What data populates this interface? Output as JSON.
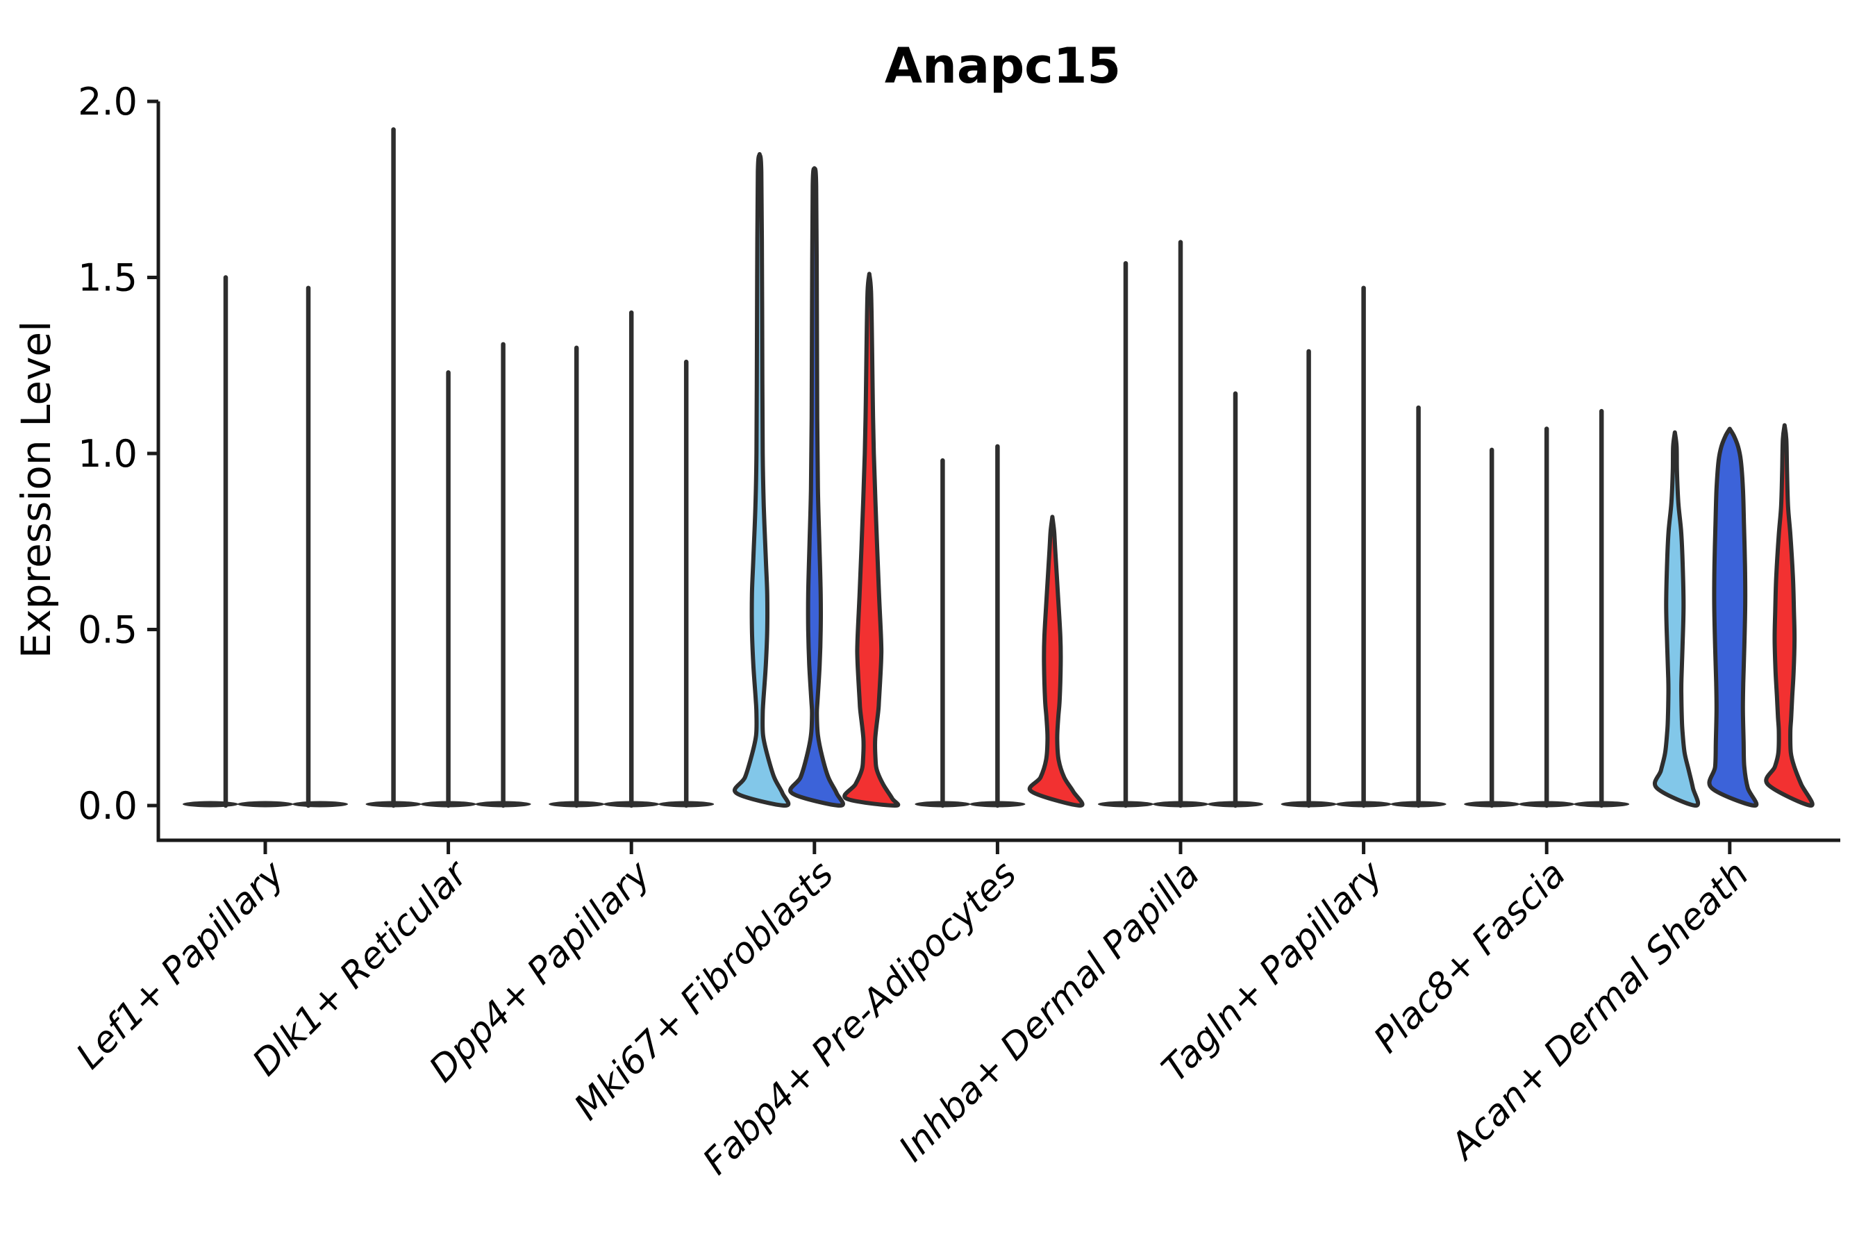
{
  "figure": {
    "title": "Anapc15",
    "ylabel": "Expression Level",
    "background_color": "#ffffff"
  },
  "palette": {
    "hue_colors": [
      "#82C7E9",
      "#3C63D9",
      "#F23131"
    ],
    "outline_color": "#2E2E2E",
    "flat_disc_color": "#2F2F2F",
    "axis_color": "#1a1a1a"
  },
  "chart_data": {
    "type": "violin",
    "title": "Anapc15",
    "xlabel": "",
    "ylabel": "Expression Level",
    "ylim": [
      -0.1,
      2.0
    ],
    "yticks": [
      0.0,
      0.5,
      1.0,
      1.5,
      2.0
    ],
    "ytick_labels": [
      "0.0",
      "0.5",
      "1.0",
      "1.5",
      "2.0"
    ],
    "grid": false,
    "legend": "none",
    "hue_colors": [
      "#82C7E9",
      "#3C63D9",
      "#F23131"
    ],
    "categories": [
      "Lef1+ Papillary",
      "Dlk1+ Reticular",
      "Dpp4+ Papillary",
      "Mki67+ Fibroblasts",
      "Fabp4+ Pre-Adipocytes",
      "Inhba+ Dermal Papilla",
      "Tagln+ Papillary",
      "Plac8+ Fascia",
      "Acan+ Dermal Sheath"
    ],
    "groups": [
      {
        "category": "Lef1+ Papillary",
        "violins": [
          {
            "hue": 0,
            "style": "spike",
            "max": 1.5,
            "x_shift": 22
          },
          {
            "hue": 1,
            "style": "flat",
            "max": 0.0
          },
          {
            "hue": 2,
            "style": "spike",
            "max": 1.47,
            "x_shift": -17
          }
        ]
      },
      {
        "category": "Dlk1+ Reticular",
        "violins": [
          {
            "hue": 0,
            "style": "spike",
            "max": 1.92
          },
          {
            "hue": 1,
            "style": "spike",
            "max": 1.23
          },
          {
            "hue": 2,
            "style": "spike",
            "max": 1.31
          }
        ]
      },
      {
        "category": "Dpp4+ Papillary",
        "violins": [
          {
            "hue": 0,
            "style": "spike",
            "max": 1.3
          },
          {
            "hue": 1,
            "style": "spike",
            "max": 1.4
          },
          {
            "hue": 2,
            "style": "spike",
            "max": 1.26
          }
        ]
      },
      {
        "category": "Mki67+ Fibroblasts",
        "violins": [
          {
            "hue": 0,
            "style": "filled",
            "max": 1.85,
            "profile": [
              [
                1.85,
                0
              ],
              [
                1.8,
                2.5
              ],
              [
                1.5,
                3.5
              ],
              [
                1.2,
                4
              ],
              [
                1.0,
                4.5
              ],
              [
                0.85,
                6
              ],
              [
                0.7,
                9
              ],
              [
                0.6,
                11
              ],
              [
                0.5,
                11
              ],
              [
                0.4,
                9
              ],
              [
                0.3,
                5.5
              ],
              [
                0.26,
                4.5
              ],
              [
                0.2,
                5
              ],
              [
                0.145,
                11
              ],
              [
                0.08,
                21
              ],
              [
                0.035,
                33
              ],
              [
                0,
                37
              ]
            ]
          },
          {
            "hue": 1,
            "style": "filled",
            "max": 1.81,
            "profile": [
              [
                1.81,
                0
              ],
              [
                1.76,
                2.5
              ],
              [
                1.4,
                3.5
              ],
              [
                1.1,
                4
              ],
              [
                0.9,
                5
              ],
              [
                0.75,
                7
              ],
              [
                0.6,
                9
              ],
              [
                0.5,
                9
              ],
              [
                0.4,
                7.5
              ],
              [
                0.3,
                4.5
              ],
              [
                0.26,
                3.5
              ],
              [
                0.2,
                5
              ],
              [
                0.14,
                11
              ],
              [
                0.08,
                20
              ],
              [
                0.035,
                32
              ],
              [
                0,
                37
              ]
            ]
          },
          {
            "hue": 2,
            "style": "filled",
            "max": 1.51,
            "profile": [
              [
                1.51,
                0
              ],
              [
                1.46,
                2.5
              ],
              [
                1.3,
                4
              ],
              [
                1.15,
                5
              ],
              [
                1.0,
                6.5
              ],
              [
                0.8,
                10
              ],
              [
                0.6,
                14
              ],
              [
                0.47,
                17
              ],
              [
                0.41,
                17
              ],
              [
                0.3,
                14
              ],
              [
                0.27,
                13
              ],
              [
                0.19,
                8.5
              ],
              [
                0.13,
                9
              ],
              [
                0.1,
                11
              ],
              [
                0.06,
                20
              ],
              [
                0.02,
                33
              ],
              [
                0,
                37
              ]
            ]
          }
        ]
      },
      {
        "category": "Fabp4+ Pre-Adipocytes",
        "violins": [
          {
            "hue": 0,
            "style": "spike",
            "max": 0.98
          },
          {
            "hue": 1,
            "style": "spike",
            "max": 1.02
          },
          {
            "hue": 2,
            "style": "filled",
            "max": 0.82,
            "profile": [
              [
                0.82,
                0
              ],
              [
                0.78,
                2.5
              ],
              [
                0.73,
                4
              ],
              [
                0.6,
                8
              ],
              [
                0.48,
                11.5
              ],
              [
                0.4,
                12
              ],
              [
                0.3,
                10.5
              ],
              [
                0.25,
                8.5
              ],
              [
                0.19,
                7
              ],
              [
                0.13,
                9
              ],
              [
                0.08,
                17
              ],
              [
                0.04,
                30
              ],
              [
                0,
                40
              ]
            ]
          }
        ]
      },
      {
        "category": "Inhba+ Dermal Papilla",
        "violins": [
          {
            "hue": 0,
            "style": "spike",
            "max": 1.54
          },
          {
            "hue": 1,
            "style": "spike",
            "max": 1.6
          },
          {
            "hue": 2,
            "style": "spike",
            "max": 1.17
          }
        ]
      },
      {
        "category": "Tagln+ Papillary",
        "violins": [
          {
            "hue": 0,
            "style": "spike",
            "max": 1.29
          },
          {
            "hue": 1,
            "style": "spike",
            "max": 1.47
          },
          {
            "hue": 2,
            "style": "spike",
            "max": 1.13
          }
        ]
      },
      {
        "category": "Plac8+ Fascia",
        "violins": [
          {
            "hue": 0,
            "style": "spike",
            "max": 1.01
          },
          {
            "hue": 1,
            "style": "spike",
            "max": 1.07
          },
          {
            "hue": 2,
            "style": "spike",
            "max": 1.12
          }
        ]
      },
      {
        "category": "Acan+ Dermal Sheath",
        "violins": [
          {
            "hue": 0,
            "style": "filled",
            "max": 1.06,
            "profile": [
              [
                1.06,
                0
              ],
              [
                1.02,
                2.5
              ],
              [
                0.95,
                3
              ],
              [
                0.86,
                5
              ],
              [
                0.78,
                9
              ],
              [
                0.7,
                11
              ],
              [
                0.57,
                12.5
              ],
              [
                0.45,
                11
              ],
              [
                0.36,
                9.5
              ],
              [
                0.32,
                9.3
              ],
              [
                0.25,
                10
              ],
              [
                0.21,
                11
              ],
              [
                0.15,
                14
              ],
              [
                0.1,
                20
              ],
              [
                0.05,
                26
              ],
              [
                0,
                30
              ]
            ]
          },
          {
            "hue": 1,
            "style": "filled",
            "max": 1.07,
            "profile": [
              [
                1.07,
                0
              ],
              [
                1.05,
                6
              ],
              [
                1.02,
                12
              ],
              [
                0.98,
                16
              ],
              [
                0.9,
                19
              ],
              [
                0.8,
                20.5
              ],
              [
                0.68,
                22
              ],
              [
                0.57,
                22.3
              ],
              [
                0.45,
                21
              ],
              [
                0.35,
                19.5
              ],
              [
                0.27,
                19
              ],
              [
                0.18,
                20
              ],
              [
                0.11,
                21
              ],
              [
                0.05,
                26
              ],
              [
                0,
                36
              ]
            ]
          },
          {
            "hue": 2,
            "style": "filled",
            "max": 1.08,
            "profile": [
              [
                1.08,
                0
              ],
              [
                1.04,
                2.5
              ],
              [
                0.95,
                3.5
              ],
              [
                0.85,
                5
              ],
              [
                0.77,
                8.3
              ],
              [
                0.65,
                12
              ],
              [
                0.55,
                13.5
              ],
              [
                0.47,
                14.3
              ],
              [
                0.38,
                13
              ],
              [
                0.31,
                11
              ],
              [
                0.25,
                9.5
              ],
              [
                0.21,
                8.3
              ],
              [
                0.15,
                9
              ],
              [
                0.11,
                14
              ],
              [
                0.06,
                24
              ],
              [
                0,
                38
              ]
            ]
          }
        ]
      }
    ]
  }
}
